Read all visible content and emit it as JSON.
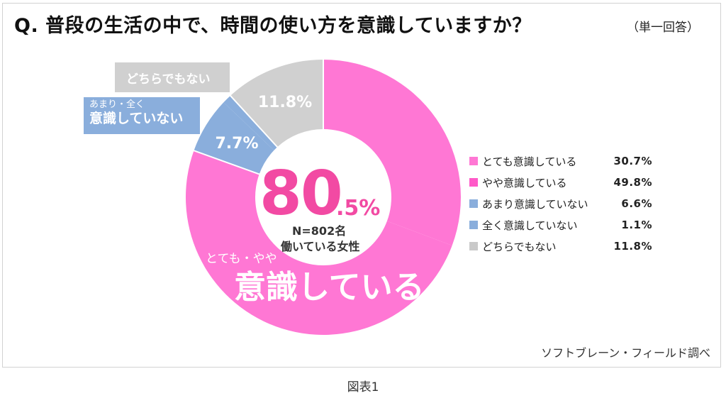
{
  "header": {
    "title": "Q.  普段の生活の中で、時間の使い方を意識していますか？",
    "answer_type": "（単一回答）"
  },
  "chart_data": {
    "type": "pie",
    "donut": true,
    "categories": [
      "とても意識している",
      "やや意識している",
      "あまり意識していない",
      "全く意識していない",
      "どちらでもない"
    ],
    "values": [
      30.7,
      49.8,
      6.6,
      1.1,
      11.8
    ],
    "value_labels": [
      "30.7%",
      "49.8%",
      "6.6%",
      "1.1%",
      "11.8%"
    ],
    "colors": [
      "#ff77d4",
      "#ff77d4",
      "#8aaedc",
      "#8aaedc",
      "#d0d0d0"
    ],
    "legend_colors": [
      "#ff77d4",
      "#ff59c8",
      "#8aaedc",
      "#8aaedc",
      "#c9c9c9"
    ],
    "legend_position": "right",
    "ring_labels": {
      "aware": "80.5%",
      "not_aware": "7.7%",
      "neither": "11.8%"
    },
    "center": {
      "big": "80",
      "pct": ".5%",
      "sample": "N=802名",
      "population": "働いている女性"
    },
    "annotations": {
      "aware_small": "とても・やや",
      "aware_big": "意識している",
      "not_aware_small": "あまり・全く",
      "not_aware_big": "意識していない",
      "neither": "どちらでもない"
    }
  },
  "footer": {
    "source": "ソフトブレーン・フィールド調べ",
    "caption": "図表1"
  }
}
